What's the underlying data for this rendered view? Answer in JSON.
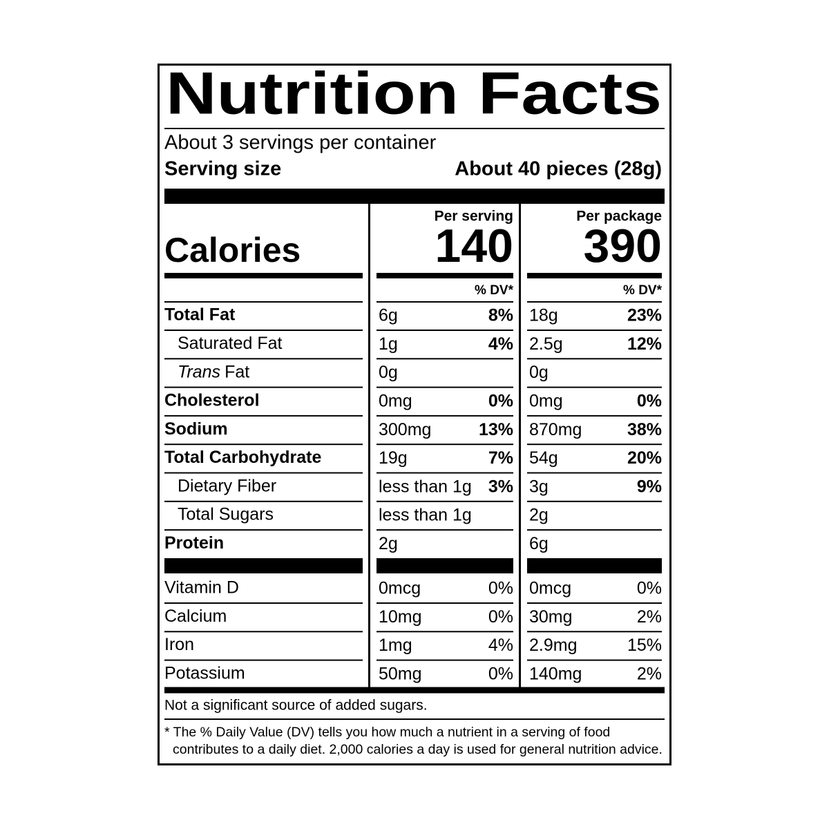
{
  "title": "Nutrition Facts",
  "servings": "About 3 servings per container",
  "serving_size_label": "Serving size",
  "serving_size": "About 40 pieces (28g)",
  "calories_label": "Calories",
  "columns": [
    {
      "header": "Per serving",
      "calories": "140",
      "dv_header": "% DV*"
    },
    {
      "header": "Per package",
      "calories": "390",
      "dv_header": "% DV*"
    }
  ],
  "nutrients": [
    {
      "name": "Total Fat",
      "bold": true,
      "values": [
        {
          "amount": "6g",
          "dv": "8%"
        },
        {
          "amount": "18g",
          "dv": "23%"
        }
      ]
    },
    {
      "name": "Saturated Fat",
      "indent": true,
      "values": [
        {
          "amount": "1g",
          "dv": "4%"
        },
        {
          "amount": "2.5g",
          "dv": "12%"
        }
      ]
    },
    {
      "italic_prefix": "Trans",
      "name": "Fat",
      "indent": true,
      "values": [
        {
          "amount": "0g"
        },
        {
          "amount": "0g"
        }
      ]
    },
    {
      "name": "Cholesterol",
      "bold": true,
      "values": [
        {
          "amount": "0mg",
          "dv": "0%"
        },
        {
          "amount": "0mg",
          "dv": "0%"
        }
      ]
    },
    {
      "name": "Sodium",
      "bold": true,
      "values": [
        {
          "amount": "300mg",
          "dv": "13%"
        },
        {
          "amount": "870mg",
          "dv": "38%"
        }
      ]
    },
    {
      "name": "Total Carbohydrate",
      "bold": true,
      "values": [
        {
          "amount": "19g",
          "dv": "7%"
        },
        {
          "amount": "54g",
          "dv": "20%"
        }
      ]
    },
    {
      "name": "Dietary Fiber",
      "indent": true,
      "values": [
        {
          "amount": "less than 1g",
          "dv": "3%"
        },
        {
          "amount": "3g",
          "dv": "9%"
        }
      ]
    },
    {
      "name": "Total Sugars",
      "indent": true,
      "values": [
        {
          "amount": "less than 1g"
        },
        {
          "amount": "2g"
        }
      ]
    },
    {
      "name": "Protein",
      "bold": true,
      "values": [
        {
          "amount": "2g"
        },
        {
          "amount": "6g"
        }
      ]
    }
  ],
  "vitamins": [
    {
      "name": "Vitamin D",
      "values": [
        {
          "amount": "0mcg",
          "dv": "0%"
        },
        {
          "amount": "0mcg",
          "dv": "0%"
        }
      ]
    },
    {
      "name": "Calcium",
      "values": [
        {
          "amount": "10mg",
          "dv": "0%"
        },
        {
          "amount": "30mg",
          "dv": "2%"
        }
      ]
    },
    {
      "name": "Iron",
      "values": [
        {
          "amount": "1mg",
          "dv": "4%"
        },
        {
          "amount": "2.9mg",
          "dv": "15%"
        }
      ]
    },
    {
      "name": "Potassium",
      "values": [
        {
          "amount": "50mg",
          "dv": "0%"
        },
        {
          "amount": "140mg",
          "dv": "2%"
        }
      ]
    }
  ],
  "note": "Not a significant source of added sugars.",
  "footnote": [
    "* The % Daily Value (DV) tells you how much a nutrient in a serving of food",
    "contributes to a daily diet. 2,000 calories a day is used for general nutrition advice."
  ]
}
